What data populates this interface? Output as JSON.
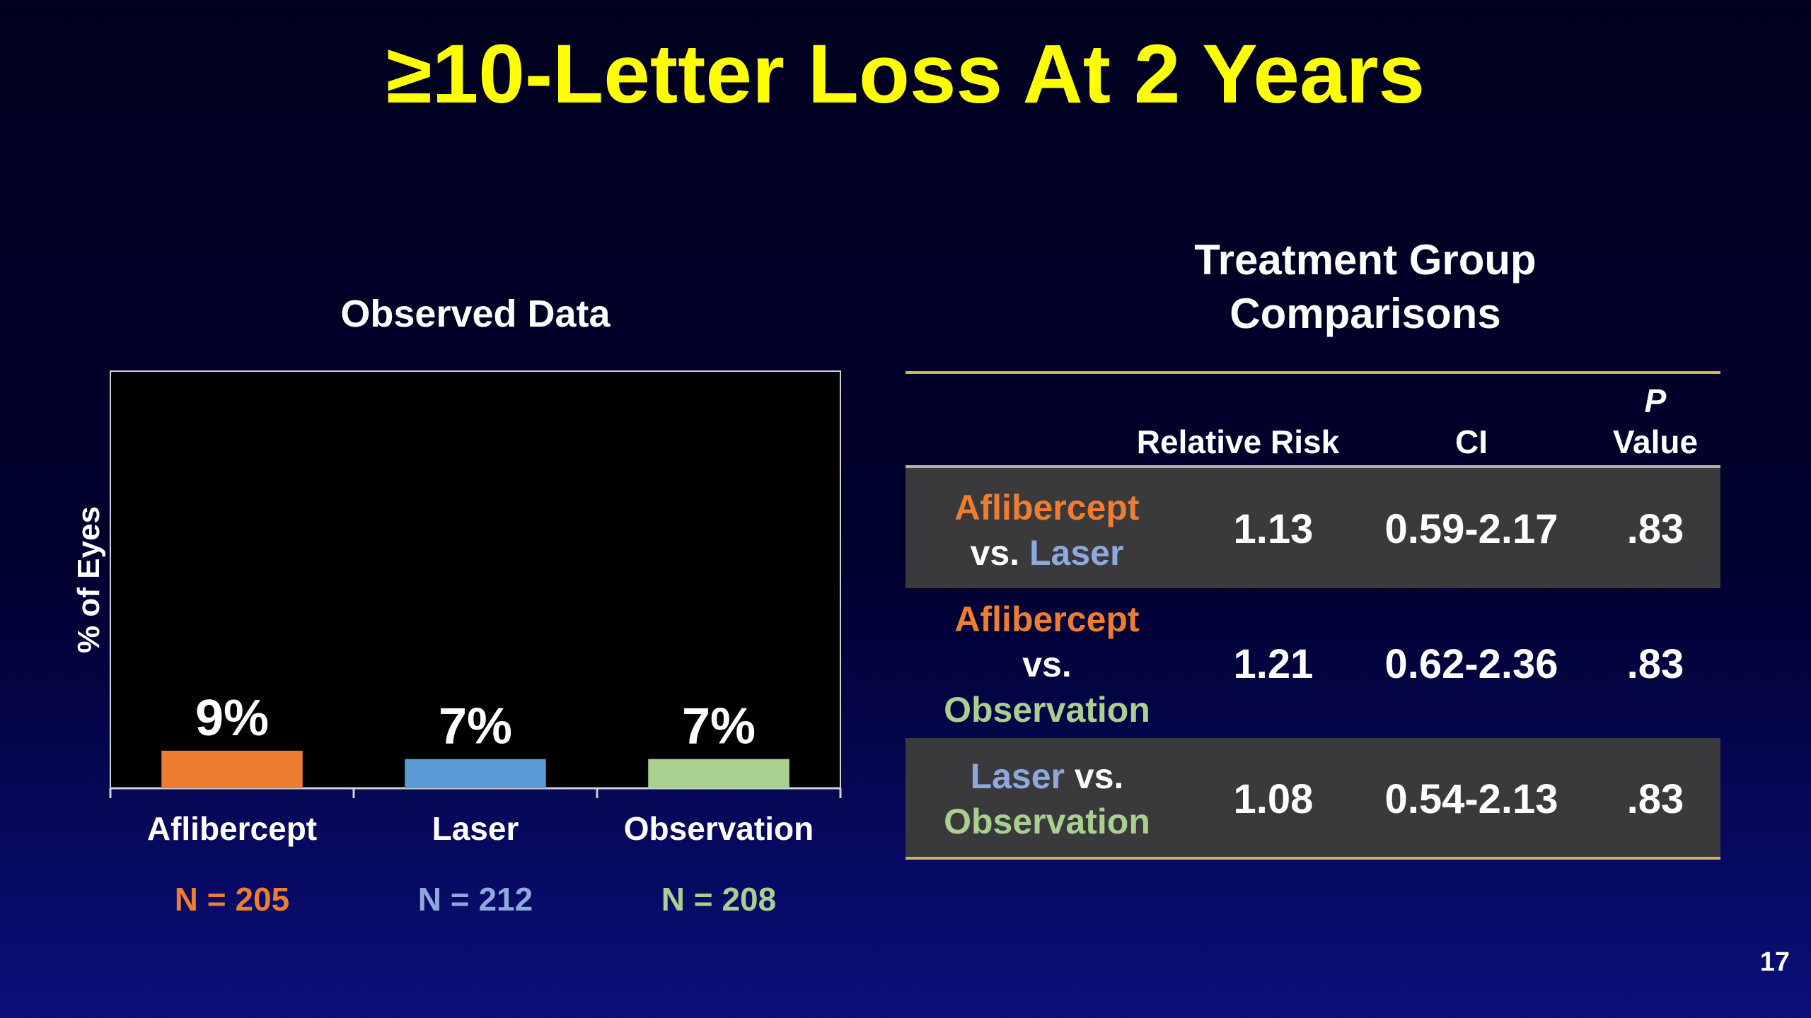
{
  "slide": {
    "title": "≥10-Letter Loss At 2 Years",
    "page_number": "17"
  },
  "chart_data": {
    "type": "bar",
    "title": "Observed Data",
    "ylabel": "% of Eyes",
    "xlabel": "",
    "categories": [
      "Aflibercept",
      "Laser",
      "Observation"
    ],
    "values": [
      9,
      7,
      7
    ],
    "data_labels": [
      "9%",
      "7%",
      "7%"
    ],
    "n_labels": [
      "N = 205",
      "N = 212",
      "N = 208"
    ],
    "colors": [
      "#ed7d31",
      "#5b9bd5",
      "#a9d08e"
    ],
    "n_label_colors": [
      "#ed7d31",
      "#8ea9db",
      "#a9d08e"
    ],
    "ylim": [
      0,
      100
    ],
    "grid": false,
    "legend": "none"
  },
  "comparisons": {
    "heading_line1": "Treatment Group",
    "heading_line2": "Comparisons",
    "columns": {
      "relative_risk": "Relative Risk",
      "ci": "CI",
      "p_line1": "P",
      "p_line2": "Value"
    },
    "rows": [
      {
        "label_parts": [
          {
            "text": "Aflibercept",
            "color": "afl"
          },
          {
            "text": "vs.",
            "color": "wht"
          },
          {
            "text": "Laser",
            "color": "las"
          }
        ],
        "relative_risk": "1.13",
        "ci": "0.59-2.17",
        "p_value": ".83"
      },
      {
        "label_parts": [
          {
            "text": "Aflibercept",
            "color": "afl"
          },
          {
            "text": "vs.",
            "color": "wht"
          },
          {
            "text": "Observation",
            "color": "obs"
          }
        ],
        "relative_risk": "1.21",
        "ci": "0.62-2.36",
        "p_value": ".83"
      },
      {
        "label_parts": [
          {
            "text": "Laser",
            "color": "las"
          },
          {
            "text": "vs.",
            "color": "wht"
          },
          {
            "text": "Observation",
            "color": "obs"
          }
        ],
        "relative_risk": "1.08",
        "ci": "0.54-2.13",
        "p_value": ".83"
      }
    ]
  }
}
